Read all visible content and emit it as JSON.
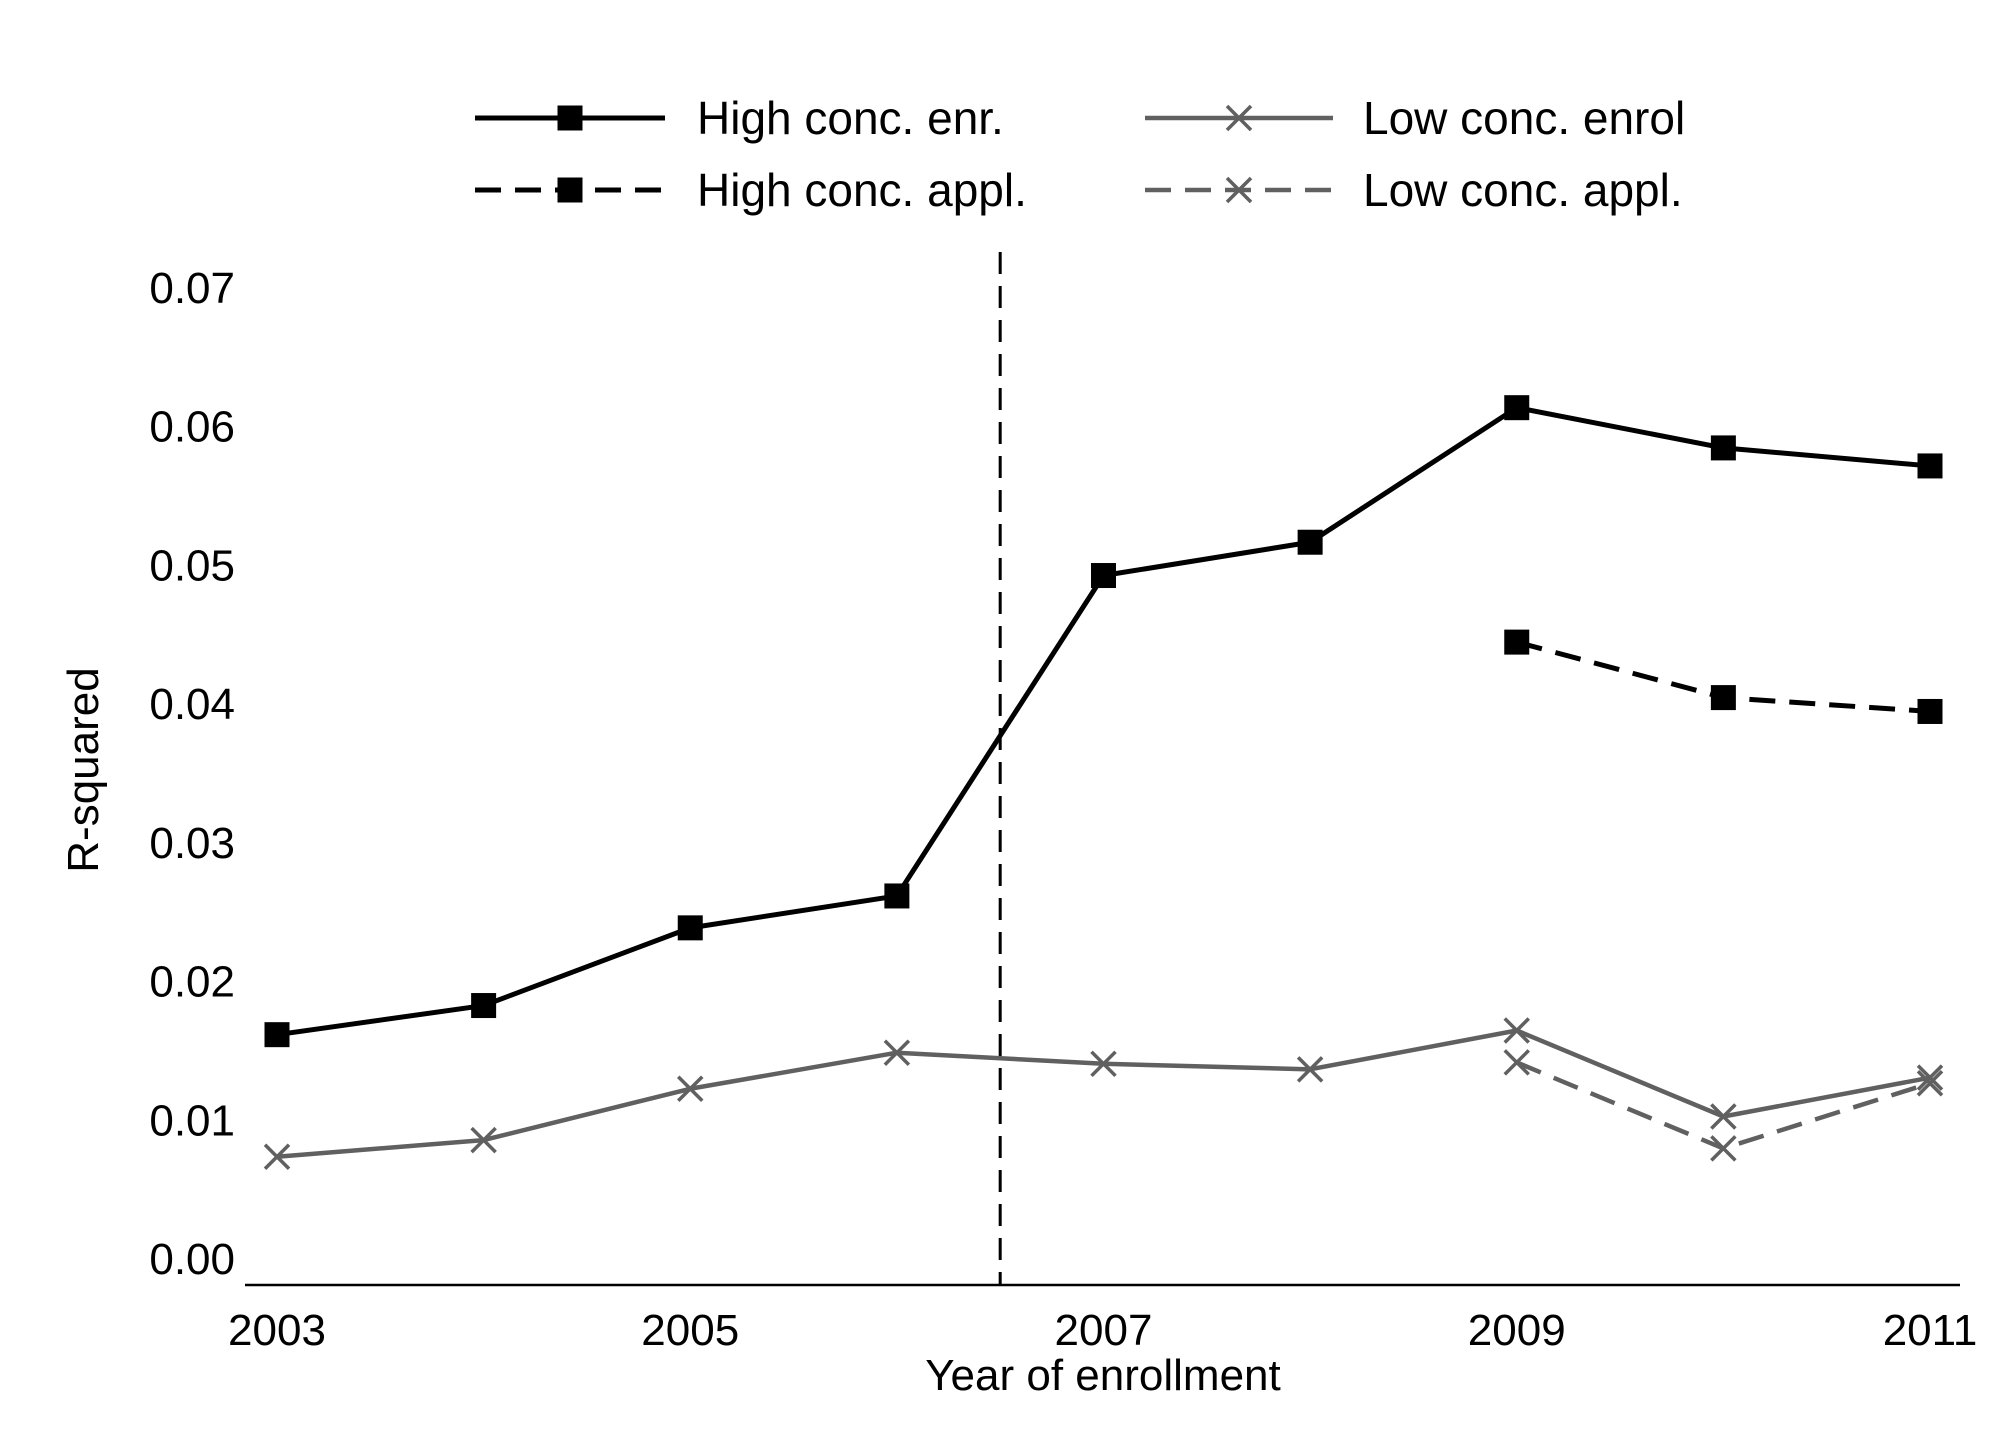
{
  "chart_data": {
    "type": "line",
    "xlabel": "Year of enrollment",
    "ylabel": "R-squared",
    "xlim": [
      2003,
      2011
    ],
    "ylim": [
      0,
      0.07
    ],
    "x_ticks": [
      2003,
      2005,
      2007,
      2009,
      2011
    ],
    "y_ticks": [
      "0.00",
      "0.01",
      "0.02",
      "0.03",
      "0.04",
      "0.05",
      "0.06",
      "0.07"
    ],
    "grid": false,
    "legend_position": "top",
    "reference_line": {
      "x": 2006.5,
      "style": "dashed"
    },
    "series": [
      {
        "name": "High conc. enr.",
        "color": "#000000",
        "marker": "square",
        "dash": "solid",
        "x": [
          2003,
          2004,
          2005,
          2006,
          2007,
          2008,
          2009,
          2010,
          2011
        ],
        "y": [
          0.0161,
          0.0182,
          0.0238,
          0.0261,
          0.0492,
          0.0516,
          0.0613,
          0.0584,
          0.0571
        ]
      },
      {
        "name": "Low conc. enrol",
        "color": "#606060",
        "marker": "x",
        "dash": "solid",
        "x": [
          2003,
          2004,
          2005,
          2006,
          2007,
          2008,
          2009,
          2010,
          2011
        ],
        "y": [
          0.0073,
          0.0085,
          0.0122,
          0.0148,
          0.014,
          0.0136,
          0.0164,
          0.0102,
          0.013
        ]
      },
      {
        "name": "High conc. appl.",
        "color": "#000000",
        "marker": "square",
        "dash": "dashed",
        "x": [
          2009,
          2010,
          2011
        ],
        "y": [
          0.0444,
          0.0404,
          0.0394
        ]
      },
      {
        "name": "Low conc. appl.",
        "color": "#606060",
        "marker": "x",
        "dash": "dashed",
        "x": [
          2009,
          2010,
          2011
        ],
        "y": [
          0.0141,
          0.0079,
          0.0126
        ]
      }
    ]
  }
}
